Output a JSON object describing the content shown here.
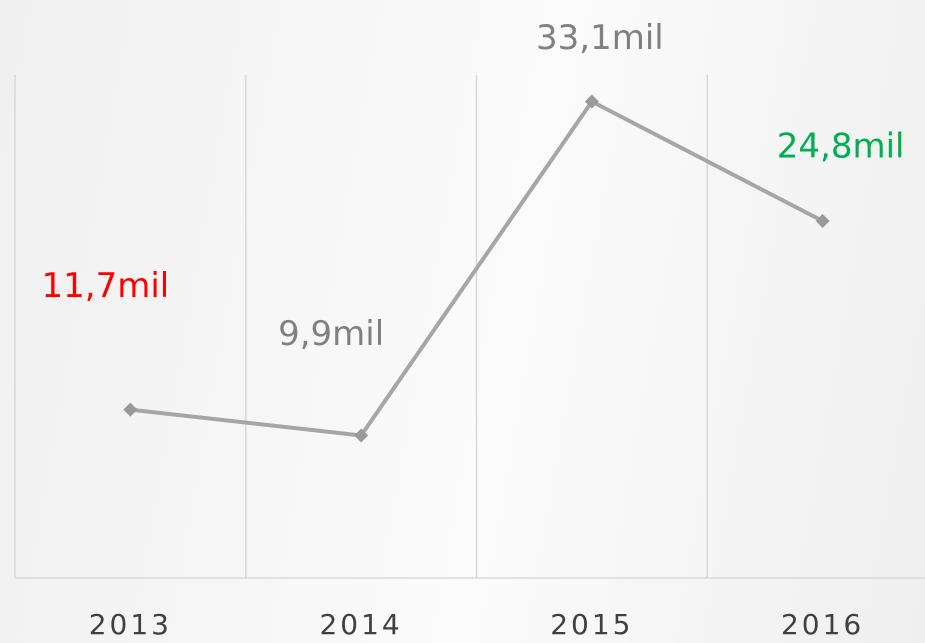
{
  "chart_data": {
    "type": "line",
    "categories": [
      "2013",
      "2014",
      "2015",
      "2016"
    ],
    "values": [
      11.7,
      9.9,
      33.1,
      24.8
    ],
    "value_labels": [
      "11,7mil",
      "9,9mil",
      "33,1mil",
      "24,8mil"
    ],
    "value_label_colors": [
      "#ff0000",
      "#808080",
      "#808080",
      "#00b050"
    ],
    "color": "#a6a6a6",
    "ylim": [
      0,
      38
    ],
    "grid": true
  }
}
